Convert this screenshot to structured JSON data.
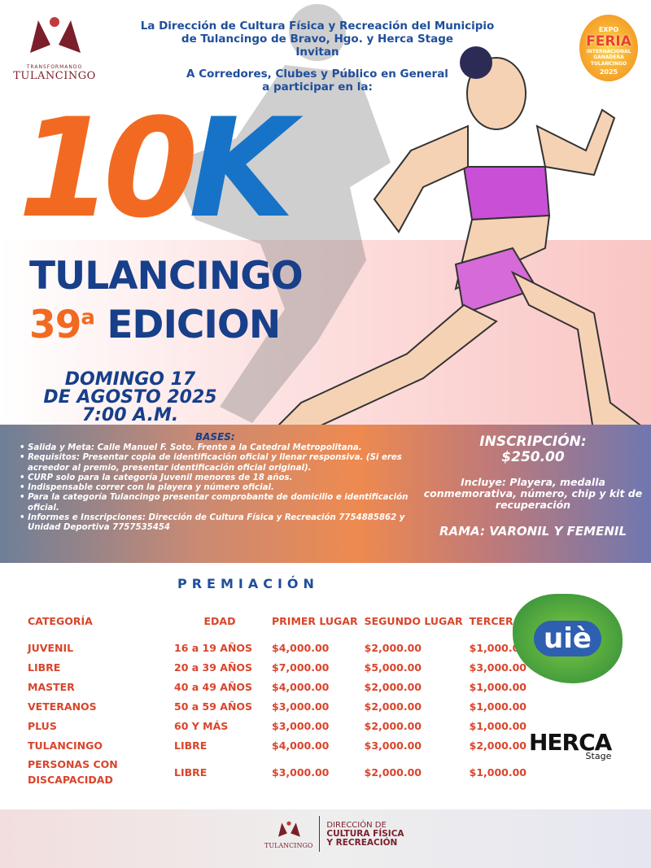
{
  "header": {
    "lines": [
      "La Dirección de Cultura Física y Recreación del Municipio",
      "de Tulancingo de Bravo, Hgo. y Herca Stage",
      "Invitan"
    ],
    "invite": [
      "A Corredores, Clubes y Público en General",
      "a participar en la:"
    ]
  },
  "logo_left": {
    "small": "TRANSFORMANDO",
    "name": "TULANCINGO"
  },
  "feria": {
    "line1": "EXPO",
    "big": "FERIA",
    "line2": "INTERNACIONAL GANADERA",
    "line3": "TULANCINGO",
    "year": "2025"
  },
  "title": {
    "num1": "1",
    "num0": "0",
    "k": "K",
    "city": "TULANCINGO",
    "ed_num": "39",
    "ed_sup": "a",
    "ed_word": "EDICION"
  },
  "date": [
    "DOMINGO 17",
    "DE AGOSTO 2025",
    "7:00 A.M."
  ],
  "bases": {
    "title": "BASES:",
    "items": [
      "Salida y Meta: Calle Manuel F. Soto. Frente a la Catedral Metropolitana.",
      "Requisitos: Presentar copia de identificación oficial y llenar responsiva. (Si eres acreedor al premio, presentar identificación oficial original).",
      "CURP solo para la categoría Juvenil menores de 18 años.",
      "Indispensable correr con la playera y número oficial.",
      "Para la categoría Tulancingo presentar comprobante de domicilio e identificación oficial.",
      "Informes e Inscripciones: Dirección de Cultura Física y Recreación 7754885862 y Unidad Deportiva 7757535454"
    ]
  },
  "inscripcion": {
    "title": "INSCRIPCIÓN:",
    "price": "$250.00",
    "includes": "Incluye:  Playera, medalla conmemorativa, número, chip  y kit de recuperación",
    "rama": "RAMA: VARONIL Y FEMENIL"
  },
  "premiacion": {
    "title": "PREMIACIÓN",
    "headers": [
      "CATEGORÍA",
      "EDAD",
      "PRIMER LUGAR",
      "SEGUNDO LUGAR",
      "TERCER LUGAR"
    ],
    "rows": [
      [
        "JUVENIL",
        "16 a 19 AÑOS",
        "$4,000.00",
        "$2,000.00",
        "$1,000.00"
      ],
      [
        "LIBRE",
        "20 a 39 AÑOS",
        "$7,000.00",
        "$5,000.00",
        "$3,000.00"
      ],
      [
        "MASTER",
        "40 a 49 AÑOS",
        "$4,000.00",
        "$2,000.00",
        "$1,000.00"
      ],
      [
        "VETERANOS",
        "50 a 59 AÑOS",
        "$3,000.00",
        "$2,000.00",
        "$1,000.00"
      ],
      [
        "PLUS",
        "60 Y MÁS",
        "$3,000.00",
        "$2,000.00",
        "$1,000.00"
      ],
      [
        "TULANCINGO",
        "LIBRE",
        "$4,000.00",
        "$3,000.00",
        "$2,000.00"
      ],
      [
        "PERSONAS CON DISCAPACIDAD",
        "LIBRE",
        "$3,000.00",
        "$2,000.00",
        "$1,000.00"
      ]
    ]
  },
  "sponsors": {
    "vie": "uiè",
    "herca": "HERCA",
    "herca_sub": "Stage"
  },
  "footer": {
    "logo_name": "TULANCINGO",
    "lines": [
      "DIRECCIÓN DE",
      "CULTURA FÍSICA",
      "Y RECREACIÓN"
    ]
  },
  "colors": {
    "orange": "#f26a21",
    "blue": "#173f8a",
    "red": "#d9452b",
    "maroon": "#7a1f2b"
  }
}
